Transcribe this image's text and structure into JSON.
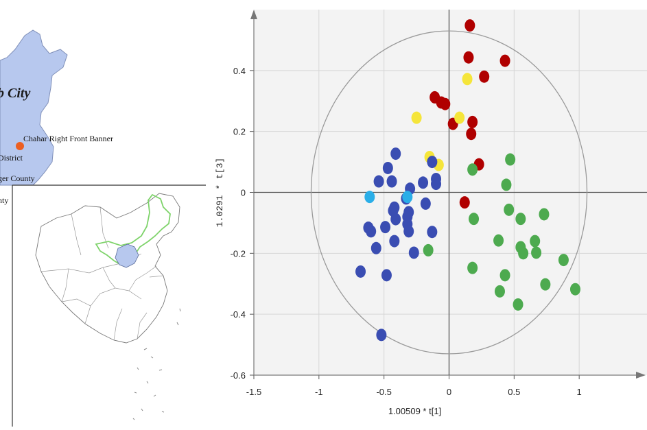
{
  "map": {
    "city_label": "b City",
    "places": [
      {
        "name": "Chahar Right Front Banner"
      },
      {
        "name": "District"
      },
      {
        "name": "ger County"
      },
      {
        "name": "nty"
      }
    ],
    "region_fill": "#b7c8ee",
    "marker_color": "#ec5f22",
    "boundary_color": "#7ed36a"
  },
  "chart_data": {
    "type": "scatter",
    "title": "",
    "xlabel": "1.00509 * t[1]",
    "ylabel": "1.0291 * t[3]",
    "xlim": [
      -1.5,
      1.5
    ],
    "ylim": [
      -0.6,
      0.6
    ],
    "xticks": [
      "-1.5",
      "-1",
      "-0.5",
      "0",
      "0.5",
      "1"
    ],
    "yticks": [
      "-0.6",
      "-0.4",
      "-0.2",
      "0",
      "0.2",
      "0.4"
    ],
    "grid": true,
    "ellipse": {
      "cx": 0,
      "cy": 0,
      "rx": 1.06,
      "ry": 0.53
    },
    "series": [
      {
        "color": "#b00000",
        "x": [
          0.16,
          0.15,
          0.43,
          0.27,
          -0.11,
          -0.06,
          -0.03,
          0.03,
          0.18,
          0.17,
          0.23,
          0.12
        ],
        "y": [
          0.548,
          0.443,
          0.432,
          0.38,
          0.312,
          0.295,
          0.29,
          0.225,
          0.231,
          0.192,
          0.092,
          -0.033
        ]
      },
      {
        "color": "#f5e53a",
        "x": [
          0.14,
          -0.25,
          0.08,
          -0.15,
          -0.08
        ],
        "y": [
          0.372,
          0.245,
          0.245,
          0.116,
          0.09
        ]
      },
      {
        "color": "#3a4db2",
        "x": [
          -0.41,
          -0.47,
          -0.13,
          -0.54,
          -0.44,
          -0.3,
          -0.2,
          -0.1,
          -0.1,
          -0.33,
          -0.31,
          -0.18,
          -0.42,
          -0.43,
          -0.32,
          -0.41,
          -0.49,
          -0.62,
          -0.6,
          -0.32,
          -0.13,
          -0.31,
          -0.42,
          -0.56,
          -0.27,
          -0.68,
          -0.48,
          -0.52
        ],
        "y": [
          0.127,
          0.08,
          0.1,
          0.036,
          0.036,
          0.012,
          0.032,
          0.044,
          0.028,
          -0.02,
          -0.065,
          -0.037,
          -0.05,
          -0.06,
          -0.08,
          -0.088,
          -0.114,
          -0.116,
          -0.128,
          -0.104,
          -0.13,
          -0.128,
          -0.16,
          -0.183,
          -0.198,
          -0.26,
          -0.272,
          -0.468
        ]
      },
      {
        "color": "#2aaee8",
        "x": [
          -0.61,
          -0.32
        ],
        "y": [
          -0.015,
          -0.015
        ]
      },
      {
        "color": "#4daa4f",
        "x": [
          0.47,
          0.18,
          0.44,
          0.46,
          0.55,
          0.19,
          0.73,
          0.38,
          0.55,
          0.57,
          0.66,
          0.67,
          0.88,
          -0.16,
          0.18,
          0.43,
          0.74,
          0.39,
          0.97,
          0.53
        ],
        "y": [
          0.108,
          0.075,
          0.025,
          -0.057,
          -0.087,
          -0.087,
          -0.072,
          -0.158,
          -0.18,
          -0.2,
          -0.16,
          -0.198,
          -0.222,
          -0.19,
          -0.248,
          -0.272,
          -0.302,
          -0.325,
          -0.318,
          -0.368
        ]
      }
    ]
  }
}
